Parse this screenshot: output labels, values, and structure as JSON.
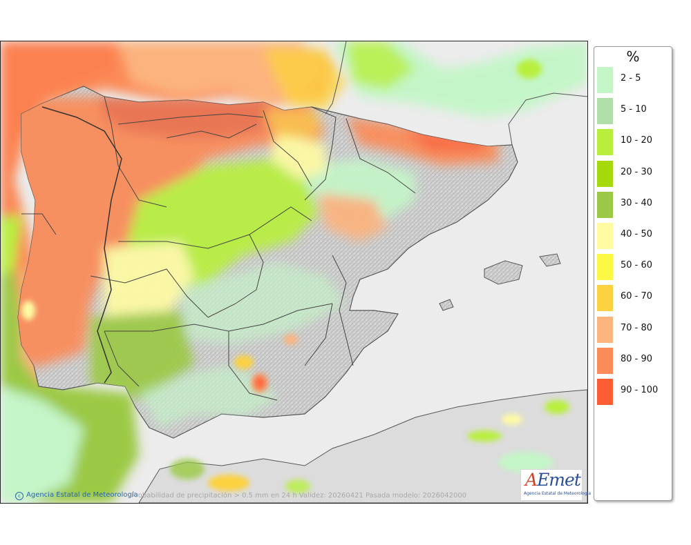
{
  "legend": {
    "title": "%",
    "classes": [
      {
        "label": "2 - 5",
        "color": "#c4f5c8"
      },
      {
        "label": "5 - 10",
        "color": "#b0dfaa"
      },
      {
        "label": "10 - 20",
        "color": "#b8ef3c"
      },
      {
        "label": "20 - 30",
        "color": "#a5d90c"
      },
      {
        "label": "30 - 40",
        "color": "#9bc945"
      },
      {
        "label": "40 - 50",
        "color": "#fefba3"
      },
      {
        "label": "50 - 60",
        "color": "#fcf846"
      },
      {
        "label": "60 - 70",
        "color": "#fcd13f"
      },
      {
        "label": "70 - 80",
        "color": "#fcb37e"
      },
      {
        "label": "80 - 90",
        "color": "#fb8b58"
      },
      {
        "label": "90 - 100",
        "color": "#fc5e34"
      }
    ]
  },
  "footer": {
    "credit": "Agencia Estatal de Meteorología",
    "caption": "Probabilidad de precipitación > 0.5 mm en 24 h Validez: 20260421 Pasada modelo: 2026042000"
  },
  "logo": {
    "word_accent": "A",
    "word_rest": "Emet",
    "subtitle": "Agencia Estatal de Meteorología"
  },
  "map": {
    "land_color": "#d6d6d6",
    "sea_color": "#ececec"
  }
}
